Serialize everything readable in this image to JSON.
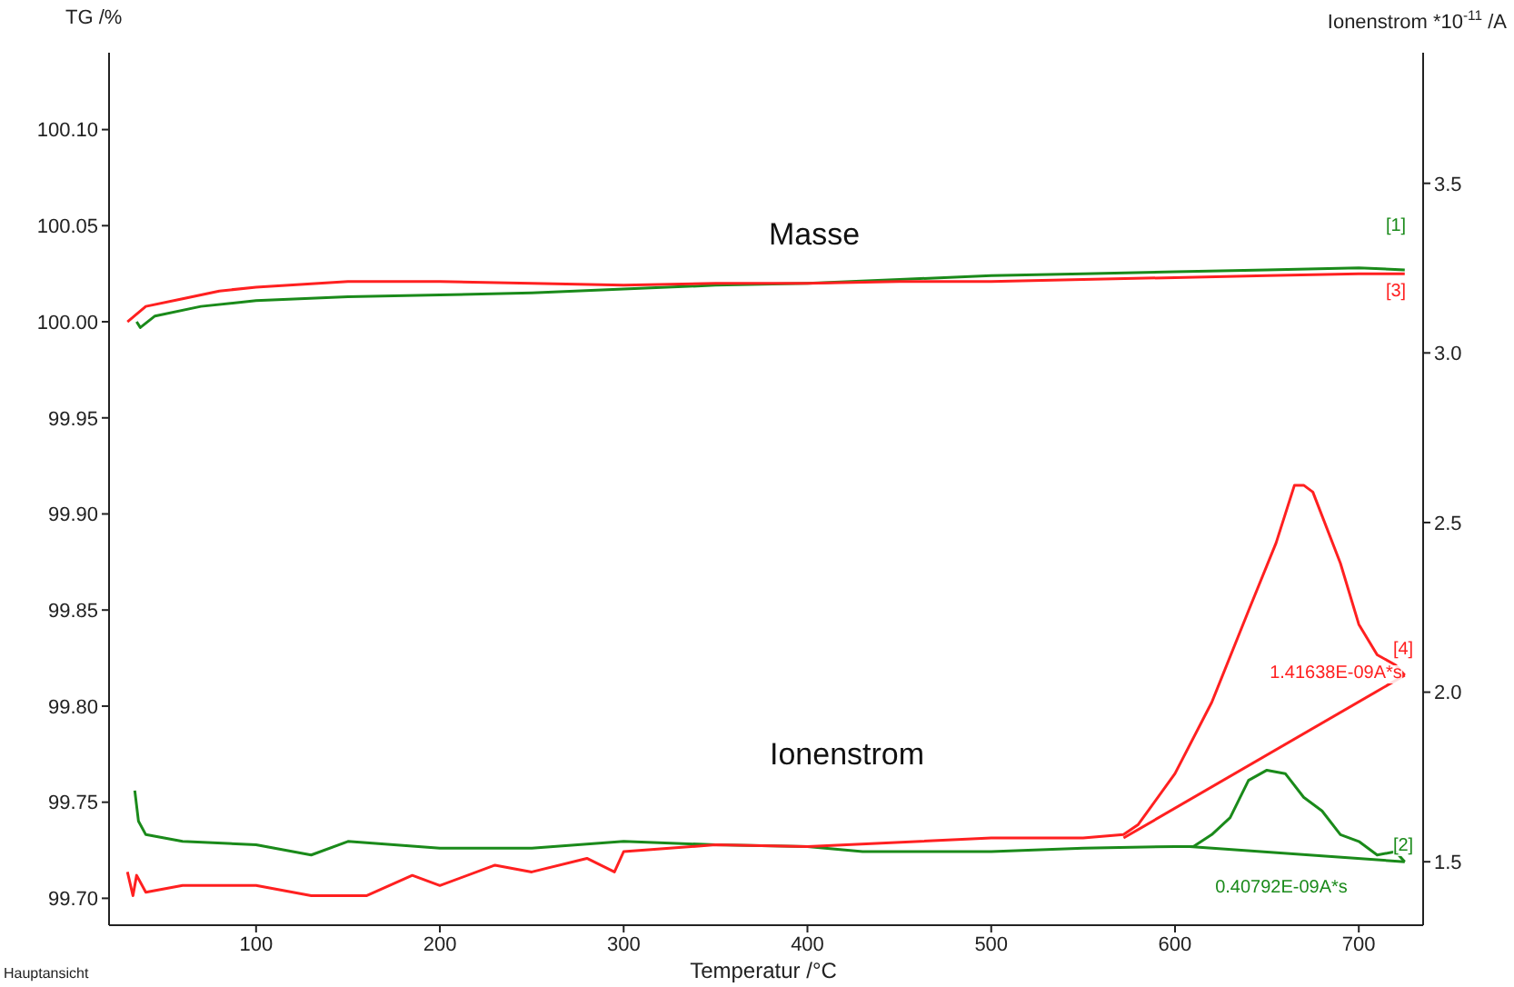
{
  "chart_data": {
    "type": "line",
    "xlabel": "Temperatur /°C",
    "ylabel": "TG /%",
    "y2label": "Ionenstrom *10$^{-11}$ /A",
    "xlim": [
      20,
      735
    ],
    "xticks": [
      100,
      200,
      300,
      400,
      500,
      600,
      700
    ],
    "ylim": [
      99.686,
      100.14
    ],
    "yticks": [
      {
        "value": 99.7,
        "label": "99.70"
      },
      {
        "value": 99.75,
        "label": "99.75"
      },
      {
        "value": 99.8,
        "label": "99.80"
      },
      {
        "value": 99.85,
        "label": "99.85"
      },
      {
        "value": 99.9,
        "label": "99.90"
      },
      {
        "value": 99.95,
        "label": "99.95"
      },
      {
        "value": 100,
        "label": "100.00"
      },
      {
        "value": 100.05,
        "label": "100.05"
      },
      {
        "value": 100.1,
        "label": "100.10"
      }
    ],
    "y2lim": [
      1.313,
      3.885
    ],
    "y2ticks": [
      {
        "value": 1.5,
        "label": "1.5"
      },
      {
        "value": 2,
        "label": "2.0"
      },
      {
        "value": 2.5,
        "label": "2.5"
      },
      {
        "value": 3,
        "label": "3.0"
      },
      {
        "value": 3.5,
        "label": "3.5"
      }
    ],
    "marker": "none",
    "series": [
      {
        "color": "#1a8a1a",
        "x": [
          35,
          37,
          45,
          70,
          100,
          150,
          200,
          250,
          300,
          350,
          400,
          450,
          500,
          550,
          600,
          650,
          700,
          725
        ],
        "values": [
          100.0,
          99.997,
          100.003,
          100.008,
          100.011,
          100.013,
          100.014,
          100.015,
          100.017,
          100.019,
          100.02,
          100.022,
          100.024,
          100.025,
          100.026,
          100.027,
          100.028,
          100.027
        ]
      },
      {
        "color": "#ff2020",
        "x": [
          30,
          40,
          60,
          80,
          100,
          150,
          200,
          250,
          300,
          350,
          400,
          450,
          500,
          550,
          600,
          650,
          700,
          725
        ],
        "values": [
          100.0,
          100.008,
          100.012,
          100.016,
          100.018,
          100.021,
          100.021,
          100.02,
          100.019,
          100.02,
          100.02,
          100.021,
          100.021,
          100.022,
          100.023,
          100.024,
          100.025,
          100.025
        ]
      },
      {
        "color": "#1a8a1a",
        "axis": "y2",
        "x": [
          34,
          36,
          40,
          50,
          60,
          100,
          130,
          150,
          200,
          250,
          300,
          350,
          400,
          430,
          500,
          550,
          600,
          610,
          620,
          630,
          640,
          650,
          660,
          670,
          680,
          690,
          700,
          710,
          720,
          725
        ],
        "values": [
          1.71,
          1.62,
          1.58,
          1.57,
          1.56,
          1.55,
          1.52,
          1.56,
          1.54,
          1.54,
          1.56,
          1.55,
          1.545,
          1.53,
          1.53,
          1.54,
          1.545,
          1.545,
          1.58,
          1.63,
          1.74,
          1.77,
          1.76,
          1.69,
          1.65,
          1.58,
          1.56,
          1.52,
          1.53,
          1.5
        ]
      },
      {
        "color": "#ff2020",
        "axis": "y2",
        "x": [
          30,
          33,
          35,
          40,
          60,
          100,
          130,
          160,
          185,
          200,
          230,
          250,
          280,
          295,
          300,
          350,
          400,
          500,
          550,
          572,
          580,
          600,
          620,
          640,
          655,
          665,
          670,
          675,
          690,
          700,
          710,
          720,
          725
        ],
        "values": [
          1.47,
          1.4,
          1.46,
          1.41,
          1.43,
          1.43,
          1.4,
          1.4,
          1.46,
          1.43,
          1.49,
          1.47,
          1.51,
          1.47,
          1.53,
          1.55,
          1.545,
          1.57,
          1.57,
          1.58,
          1.61,
          1.76,
          1.97,
          2.24,
          2.44,
          2.61,
          2.61,
          2.59,
          2.38,
          2.2,
          2.11,
          2.08,
          2.05
        ]
      },
      {
        "color": "#ff2020",
        "axis": "y2",
        "x": [
          572,
          725
        ],
        "values": [
          1.57,
          2.05
        ]
      },
      {
        "color": "#1a8a1a",
        "axis": "y2",
        "x": [
          608,
          725
        ],
        "values": [
          1.545,
          1.5
        ]
      }
    ],
    "annotations": [
      "Masse",
      "Ionenstrom",
      "[1]",
      "[3]",
      "[4]",
      "[2]",
      "1.41638E-09A*s",
      "0.40792E-09A*s",
      "Hauptansicht"
    ]
  }
}
